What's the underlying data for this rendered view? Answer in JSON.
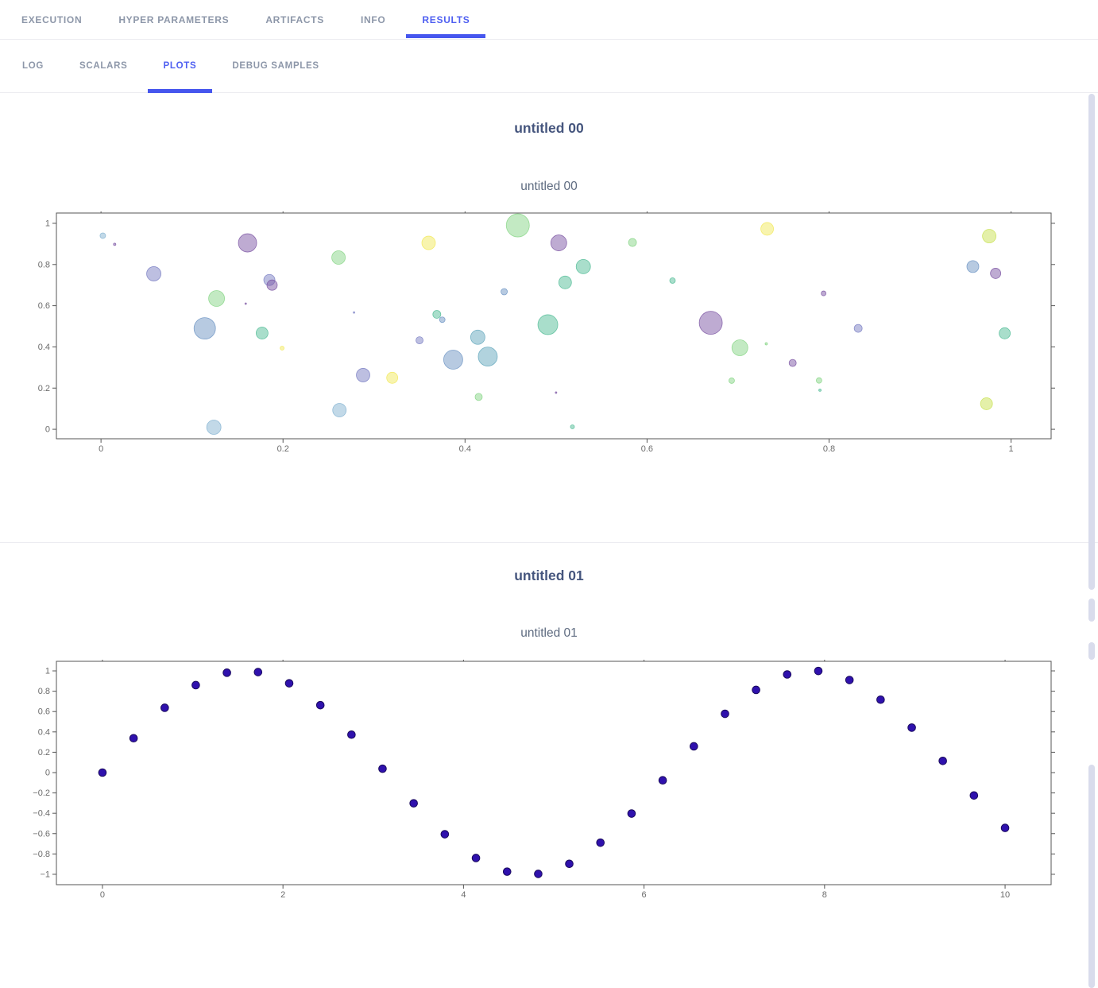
{
  "accent": "#4e5ff1",
  "colors": {
    "tab_inactive": "#8d97a9",
    "tab_active": "#4e5ff1",
    "underline": "#4656ee",
    "panel_title": "#46567e",
    "chart_title": "#5e6b80",
    "axis_line": "#565656",
    "tick_label": "#6b6b6b",
    "divider": "#ececf1",
    "scroll_thumb": "#d9dcec"
  },
  "tabs": [
    {
      "label": "EXECUTION",
      "active": false
    },
    {
      "label": "HYPER PARAMETERS",
      "active": false
    },
    {
      "label": "ARTIFACTS",
      "active": false
    },
    {
      "label": "INFO",
      "active": false
    },
    {
      "label": "RESULTS",
      "active": true
    }
  ],
  "subtabs": [
    {
      "label": "LOG",
      "active": false
    },
    {
      "label": "SCALARS",
      "active": false
    },
    {
      "label": "PLOTS",
      "active": true
    },
    {
      "label": "DEBUG SAMPLES",
      "active": false
    }
  ],
  "panels": [
    {
      "header": "untitled 00",
      "chart_data": {
        "type": "scatter",
        "variant": "bubble",
        "title": "untitled 00",
        "xlim": [
          -0.049,
          1.044
        ],
        "ylim": [
          -0.046,
          1.05
        ],
        "xticks": [
          0,
          0.2,
          0.4,
          0.6,
          0.8,
          1
        ],
        "yticks": [
          0,
          0.2,
          0.4,
          0.6,
          0.8,
          1
        ],
        "grid": false,
        "legend": false,
        "marker_opacity": 0.5,
        "palette": {
          "purple": "#7e57a5",
          "violet": "#7b80c4",
          "blue": "#6f95c4",
          "lightblue": "#85b4d2",
          "cadet": "#64a8bd",
          "teal": "#53bd98",
          "green": "#88d687",
          "lime": "#c9e253",
          "yellow": "#f2e95d"
        },
        "point_format": [
          "x",
          "y",
          "diameter_px",
          "color"
        ],
        "points": [
          [
            0.002,
            0.94,
            7,
            "lightblue"
          ],
          [
            0.015,
            0.898,
            3,
            "purple"
          ],
          [
            0.058,
            0.755,
            18,
            "violet"
          ],
          [
            0.127,
            0.635,
            20,
            "green"
          ],
          [
            0.114,
            0.49,
            27,
            "blue"
          ],
          [
            0.124,
            0.01,
            18,
            "lightblue"
          ],
          [
            0.161,
            0.905,
            23,
            "purple"
          ],
          [
            0.159,
            0.61,
            2,
            "purple"
          ],
          [
            0.185,
            0.725,
            14,
            "violet"
          ],
          [
            0.188,
            0.7,
            13,
            "purple"
          ],
          [
            0.177,
            0.467,
            15,
            "teal"
          ],
          [
            0.199,
            0.394,
            5,
            "yellow"
          ],
          [
            0.261,
            0.834,
            17,
            "green"
          ],
          [
            0.278,
            0.567,
            2,
            "violet"
          ],
          [
            0.288,
            0.263,
            17,
            "violet"
          ],
          [
            0.262,
            0.093,
            17,
            "lightblue"
          ],
          [
            0.458,
            0.99,
            29,
            "green"
          ],
          [
            0.36,
            0.905,
            17,
            "yellow"
          ],
          [
            0.503,
            0.905,
            20,
            "purple"
          ],
          [
            0.584,
            0.907,
            10,
            "green"
          ],
          [
            0.53,
            0.79,
            18,
            "teal"
          ],
          [
            0.51,
            0.713,
            16,
            "teal"
          ],
          [
            0.628,
            0.722,
            7,
            "teal"
          ],
          [
            0.443,
            0.668,
            8,
            "blue"
          ],
          [
            0.369,
            0.558,
            10,
            "teal"
          ],
          [
            0.375,
            0.532,
            7,
            "blue"
          ],
          [
            0.491,
            0.508,
            25,
            "teal"
          ],
          [
            0.35,
            0.432,
            9,
            "violet"
          ],
          [
            0.414,
            0.447,
            18,
            "cadet"
          ],
          [
            0.387,
            0.338,
            24,
            "blue"
          ],
          [
            0.425,
            0.353,
            24,
            "cadet"
          ],
          [
            0.32,
            0.25,
            14,
            "yellow"
          ],
          [
            0.415,
            0.157,
            9,
            "green"
          ],
          [
            0.5,
            0.178,
            2,
            "purple"
          ],
          [
            0.518,
            0.012,
            5,
            "teal"
          ],
          [
            0.732,
            0.973,
            16,
            "yellow"
          ],
          [
            0.976,
            0.938,
            17,
            "lime"
          ],
          [
            0.958,
            0.79,
            15,
            "blue"
          ],
          [
            0.983,
            0.757,
            13,
            "purple"
          ],
          [
            0.794,
            0.66,
            6,
            "purple"
          ],
          [
            0.67,
            0.517,
            29,
            "purple"
          ],
          [
            0.832,
            0.49,
            10,
            "violet"
          ],
          [
            0.993,
            0.466,
            14,
            "teal"
          ],
          [
            0.702,
            0.396,
            20,
            "green"
          ],
          [
            0.731,
            0.415,
            3,
            "green"
          ],
          [
            0.76,
            0.322,
            9,
            "purple"
          ],
          [
            0.693,
            0.236,
            7,
            "green"
          ],
          [
            0.789,
            0.237,
            7,
            "green"
          ],
          [
            0.79,
            0.19,
            3,
            "teal"
          ],
          [
            0.973,
            0.124,
            15,
            "lime"
          ]
        ]
      }
    },
    {
      "header": "untitled 01",
      "chart_data": {
        "type": "scatter",
        "title": "untitled 01",
        "xlim": [
          -0.51,
          10.51
        ],
        "ylim": [
          -1.102,
          1.094
        ],
        "xticks": [
          0,
          2,
          4,
          6,
          8,
          10
        ],
        "yticks": [
          -1,
          -0.8,
          -0.6,
          -0.4,
          -0.2,
          0,
          0.2,
          0.4,
          0.6,
          0.8,
          1
        ],
        "grid": false,
        "legend": false,
        "marker_color": "#2f11ad",
        "marker_edge": "#1a0a5e",
        "marker_radius_px": 4.8,
        "x": [
          0,
          0.345,
          0.69,
          1.034,
          1.379,
          1.724,
          2.069,
          2.414,
          2.759,
          3.103,
          3.448,
          3.793,
          4.138,
          4.483,
          4.828,
          5.172,
          5.517,
          5.862,
          6.207,
          6.552,
          6.897,
          7.241,
          7.586,
          7.931,
          8.276,
          8.621,
          8.966,
          9.31,
          9.655,
          10
        ],
        "y": [
          0,
          0.338,
          0.637,
          0.86,
          0.982,
          0.988,
          0.878,
          0.663,
          0.373,
          0.038,
          -0.302,
          -0.606,
          -0.84,
          -0.974,
          -0.996,
          -0.897,
          -0.689,
          -0.403,
          -0.076,
          0.258,
          0.578,
          0.813,
          0.965,
          0.999,
          0.91,
          0.717,
          0.442,
          0.115,
          -0.225,
          -0.544
        ]
      }
    }
  ]
}
